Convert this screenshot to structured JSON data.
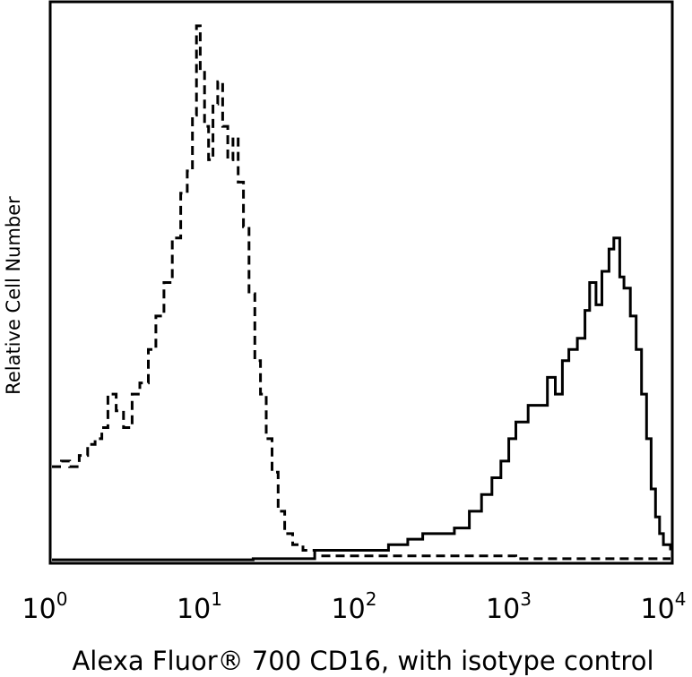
{
  "chart_data": {
    "type": "line",
    "title": "",
    "xlabel": "Alexa Fluor® 700 CD16, with isotype control",
    "ylabel": "Relative Cell Number",
    "x_scale": "log",
    "xlim": [
      1,
      10000
    ],
    "ylim": [
      0,
      100
    ],
    "grid": false,
    "legend": "none",
    "x_ticks": [
      {
        "value": 1,
        "base": "10",
        "exp": "0"
      },
      {
        "value": 10,
        "base": "10",
        "exp": "1"
      },
      {
        "value": 100,
        "base": "10",
        "exp": "2"
      },
      {
        "value": 1000,
        "base": "10",
        "exp": "3"
      },
      {
        "value": 10000,
        "base": "10",
        "exp": "4"
      }
    ],
    "series": [
      {
        "style": "dashed",
        "color": "#000000",
        "x": [
          1,
          1.15,
          1.3,
          1.5,
          1.7,
          1.9,
          2.1,
          2.3,
          2.6,
          2.9,
          3.3,
          3.7,
          4.2,
          4.7,
          5.3,
          6.0,
          6.8,
          7.5,
          8.1,
          8.6,
          9.1,
          9.7,
          10.3,
          11.0,
          11.8,
          12.7,
          13.7,
          14.8,
          16.0,
          17.3,
          18.8,
          20.5,
          22.3,
          24.3,
          26.5,
          29.0,
          32.0,
          36.0,
          42.0,
          55.0,
          100,
          1000,
          10000
        ],
        "y": [
          17,
          18,
          17,
          19,
          21,
          22,
          24,
          30,
          27,
          24,
          30,
          32,
          38,
          44,
          50,
          58,
          66,
          70,
          80,
          96,
          88,
          78,
          72,
          82,
          86,
          78,
          72,
          76,
          68,
          60,
          48,
          36,
          30,
          22,
          16,
          9,
          5,
          3,
          2,
          1,
          1,
          0.5,
          0.5
        ]
      },
      {
        "style": "solid",
        "color": "#000000",
        "x": [
          1,
          20,
          50,
          100,
          150,
          200,
          250,
          300,
          400,
          500,
          600,
          700,
          800,
          900,
          1000,
          1200,
          1400,
          1600,
          1800,
          2000,
          2200,
          2500,
          2800,
          3000,
          3300,
          3600,
          4000,
          4300,
          4700,
          5000,
          5500,
          6000,
          6500,
          7000,
          7500,
          8000,
          8500,
          9000,
          10000
        ],
        "y": [
          0.3,
          0.5,
          2,
          2,
          3,
          4,
          5,
          5,
          6,
          9,
          12,
          15,
          18,
          22,
          25,
          28,
          28,
          33,
          30,
          36,
          38,
          40,
          45,
          50,
          46,
          52,
          56,
          58,
          51,
          49,
          44,
          38,
          30,
          22,
          13,
          8,
          5,
          3,
          2
        ]
      }
    ]
  }
}
